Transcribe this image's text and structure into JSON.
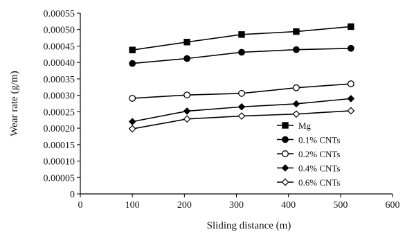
{
  "chart_data": {
    "type": "line",
    "title": "",
    "xlabel": "Sliding distance (m)",
    "ylabel": "Wear rate (g/m)",
    "xlim": [
      0,
      600
    ],
    "ylim": [
      0,
      0.00055
    ],
    "xticks": [
      0,
      100,
      200,
      300,
      400,
      500,
      600
    ],
    "xtick_labels": [
      "0",
      "100",
      "200",
      "300",
      "400",
      "500",
      "600"
    ],
    "yticks": [
      0,
      5e-05,
      0.0001,
      0.00015,
      0.0002,
      0.00025,
      0.0003,
      0.00035,
      0.0004,
      0.00045,
      0.0005,
      0.00055
    ],
    "ytick_labels": [
      "0",
      "0.00005",
      "0.00010",
      "0.00015",
      "0.00020",
      "0.00025",
      "0.00030",
      "0.00035",
      "0.00040",
      "0.00045",
      "0.00050",
      "0.00055"
    ],
    "x": [
      100,
      205,
      310,
      415,
      520
    ],
    "grid": false,
    "legend_position": "lower-right",
    "series": [
      {
        "name": "Mg",
        "marker": "square-filled",
        "values": [
          0.000438,
          0.000462,
          0.000485,
          0.000494,
          0.000509
        ]
      },
      {
        "name": "0.1% CNTs",
        "marker": "circle-filled",
        "values": [
          0.000397,
          0.000412,
          0.000431,
          0.000439,
          0.000443
        ]
      },
      {
        "name": "0.2% CNTs",
        "marker": "circle-open",
        "values": [
          0.000291,
          0.000301,
          0.000306,
          0.000323,
          0.000335
        ]
      },
      {
        "name": "0.4% CNTs",
        "marker": "diamond-filled",
        "values": [
          0.00022,
          0.000252,
          0.000265,
          0.000274,
          0.00029
        ]
      },
      {
        "name": "0.6% CNTs",
        "marker": "diamond-open",
        "values": [
          0.000198,
          0.000228,
          0.000237,
          0.000243,
          0.000253
        ]
      }
    ],
    "colors": {
      "line": "#000000",
      "marker": "#000000",
      "background": "#ffffff"
    }
  }
}
